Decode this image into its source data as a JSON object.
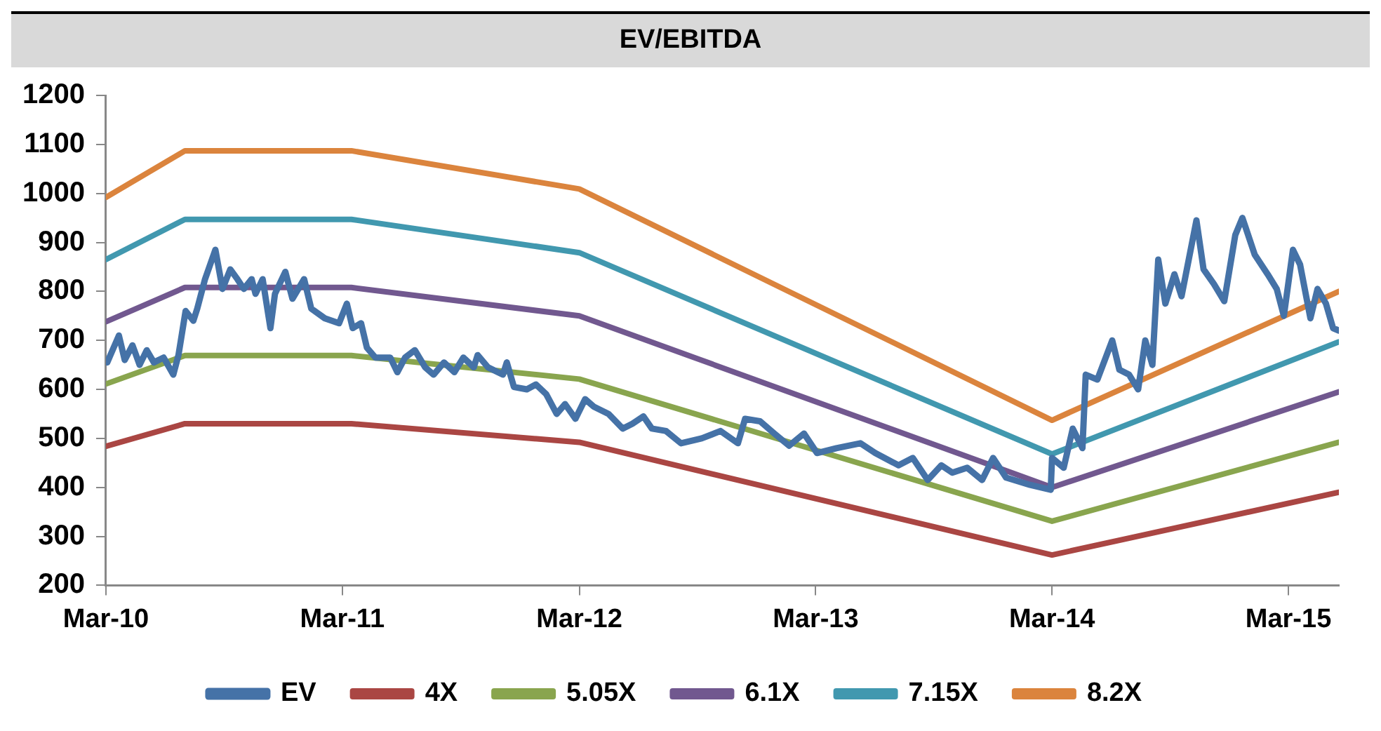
{
  "chart_data": {
    "type": "line",
    "title": "EV/EBITDA",
    "x": [
      "2010-03-01",
      "2010-07-01",
      "2011-03-15",
      "2012-03-01",
      "2014-03-01",
      "2015-05-18"
    ],
    "series": [
      {
        "name": "EV",
        "color": "#4572a7",
        "x": [
          "2010-03-03",
          "2010-03-21",
          "2010-03-30",
          "2010-04-11",
          "2010-04-22",
          "2010-05-03",
          "2010-05-14",
          "2010-05-29",
          "2010-06-13",
          "2010-06-21",
          "2010-07-02",
          "2010-07-14",
          "2010-07-20",
          "2010-08-01",
          "2010-08-17",
          "2010-08-28",
          "2010-09-09",
          "2010-09-20",
          "2010-09-30",
          "2010-10-12",
          "2010-10-18",
          "2010-10-29",
          "2010-11-10",
          "2010-11-17",
          "2010-12-03",
          "2010-12-14",
          "2011-01-01",
          "2011-01-12",
          "2011-02-02",
          "2011-02-24",
          "2011-03-08",
          "2011-03-17",
          "2011-03-30",
          "2011-04-08",
          "2011-04-21",
          "2011-05-14",
          "2011-05-25",
          "2011-06-06",
          "2011-06-21",
          "2011-07-07",
          "2011-07-20",
          "2011-08-05",
          "2011-08-21",
          "2011-09-04",
          "2011-09-20",
          "2011-09-26",
          "2011-10-12",
          "2011-11-04",
          "2011-11-10",
          "2011-11-21",
          "2011-12-11",
          "2011-12-25",
          "2012-01-10",
          "2012-01-26",
          "2012-02-08",
          "2012-02-24",
          "2012-03-10",
          "2012-03-23",
          "2012-04-15",
          "2012-05-07",
          "2012-05-22",
          "2012-06-08",
          "2012-06-21",
          "2012-07-13",
          "2012-08-05",
          "2012-09-06",
          "2012-10-05",
          "2012-11-01",
          "2012-11-12",
          "2012-12-05",
          "2012-12-27",
          "2013-01-19",
          "2013-02-11",
          "2013-03-03",
          "2013-04-02",
          "2013-05-09",
          "2013-06-01",
          "2013-07-07",
          "2013-07-29",
          "2013-08-21",
          "2013-09-11",
          "2013-09-28",
          "2013-10-21",
          "2013-11-13",
          "2013-11-30",
          "2013-12-20",
          "2014-01-26",
          "2014-02-27",
          "2014-03-01",
          "2014-03-19",
          "2014-04-02",
          "2014-04-17",
          "2014-04-22",
          "2014-05-10",
          "2014-06-02",
          "2014-06-13",
          "2014-06-28",
          "2014-07-12",
          "2014-07-23",
          "2014-08-03",
          "2014-08-12",
          "2014-08-23",
          "2014-09-06",
          "2014-09-17",
          "2014-10-10",
          "2014-10-21",
          "2014-11-06",
          "2014-11-22",
          "2014-12-09",
          "2014-12-20",
          "2015-01-08",
          "2015-01-28",
          "2015-02-11",
          "2015-02-22",
          "2015-03-08",
          "2015-03-19",
          "2015-04-04",
          "2015-04-15",
          "2015-04-28",
          "2015-05-09",
          "2015-05-18"
        ],
        "values": [
          655,
          710,
          660,
          690,
          650,
          680,
          655,
          665,
          630,
          670,
          760,
          740,
          765,
          825,
          885,
          805,
          845,
          825,
          805,
          825,
          795,
          825,
          725,
          795,
          840,
          785,
          825,
          765,
          745,
          735,
          775,
          725,
          735,
          685,
          665,
          665,
          635,
          665,
          680,
          645,
          630,
          655,
          635,
          665,
          645,
          670,
          645,
          630,
          655,
          605,
          600,
          610,
          590,
          550,
          570,
          540,
          580,
          565,
          550,
          520,
          530,
          545,
          520,
          515,
          490,
          500,
          515,
          490,
          540,
          535,
          510,
          485,
          510,
          470,
          480,
          490,
          470,
          445,
          460,
          415,
          445,
          430,
          440,
          415,
          460,
          420,
          405,
          395,
          460,
          440,
          520,
          480,
          630,
          620,
          700,
          640,
          630,
          600,
          700,
          650,
          865,
          775,
          835,
          790,
          945,
          845,
          815,
          780,
          915,
          950,
          875,
          835,
          805,
          750,
          885,
          855,
          745,
          805,
          775,
          725,
          720
        ]
      },
      {
        "name": "4X",
        "color": "#aa4643",
        "values": [
          484,
          530,
          530,
          492,
          262,
          390
        ]
      },
      {
        "name": "5.05X",
        "color": "#89a54e",
        "values": [
          611,
          669,
          669,
          621,
          331,
          492
        ]
      },
      {
        "name": "6.1X",
        "color": "#71588f",
        "values": [
          738,
          808,
          808,
          750,
          400,
          595
        ]
      },
      {
        "name": "7.15X",
        "color": "#4198af",
        "values": [
          865,
          947,
          947,
          879,
          468,
          697
        ]
      },
      {
        "name": "8.2X",
        "color": "#db843d",
        "values": [
          992,
          1087,
          1087,
          1009,
          537,
          800
        ]
      }
    ],
    "xlim": [
      "2010-03-01",
      "2015-05-18"
    ],
    "xticks": [
      {
        "value": "2010-03-01",
        "label": "Mar-10"
      },
      {
        "value": "2011-03-01",
        "label": "Mar-11"
      },
      {
        "value": "2012-03-01",
        "label": "Mar-12"
      },
      {
        "value": "2013-03-01",
        "label": "Mar-13"
      },
      {
        "value": "2014-03-01",
        "label": "Mar-14"
      },
      {
        "value": "2015-03-01",
        "label": "Mar-15"
      }
    ],
    "ylim": [
      200,
      1200
    ],
    "yticks": [
      200,
      300,
      400,
      500,
      600,
      700,
      800,
      900,
      1000,
      1100,
      1200
    ],
    "grid": false,
    "legend": "bottom",
    "marker": "none",
    "line_style": "solid"
  }
}
